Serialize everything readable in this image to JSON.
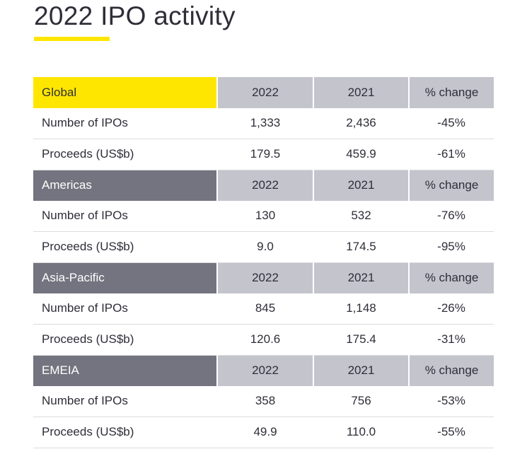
{
  "header": {
    "title": "2022 IPO activity"
  },
  "table": {
    "columns": {
      "year_current": "2022",
      "year_previous": "2021",
      "change": "% change"
    },
    "regions": [
      {
        "name": "Global",
        "rows": [
          {
            "metric": "Number of IPOs",
            "unit": "",
            "v2022": "1,333",
            "v2021": "2,436",
            "change": "-45%"
          },
          {
            "metric": "Proceeds",
            "unit": "(US$b)",
            "v2022": "179.5",
            "v2021": "459.9",
            "change": "-61%"
          }
        ]
      },
      {
        "name": "Americas",
        "rows": [
          {
            "metric": "Number of IPOs",
            "unit": "",
            "v2022": "130",
            "v2021": "532",
            "change": "-76%"
          },
          {
            "metric": "Proceeds",
            "unit": "(US$b)",
            "v2022": "9.0",
            "v2021": "174.5",
            "change": "-95%"
          }
        ]
      },
      {
        "name": "Asia-Pacific",
        "rows": [
          {
            "metric": "Number of IPOs",
            "unit": "",
            "v2022": "845",
            "v2021": "1,148",
            "change": "-26%"
          },
          {
            "metric": "Proceeds",
            "unit": "(US$b)",
            "v2022": "120.6",
            "v2021": "175.4",
            "change": "-31%"
          }
        ]
      },
      {
        "name": "EMEIA",
        "rows": [
          {
            "metric": "Number of IPOs",
            "unit": "",
            "v2022": "358",
            "v2021": "756",
            "change": "-53%"
          },
          {
            "metric": "Proceeds",
            "unit": "(US$b)",
            "v2022": "49.9",
            "v2021": "110.0",
            "change": "-55%"
          }
        ]
      }
    ]
  },
  "colors": {
    "global_header": "#ffe600",
    "region_header": "#747480",
    "column_header": "#c4c4cd",
    "accent_bar": "#ffe600"
  }
}
